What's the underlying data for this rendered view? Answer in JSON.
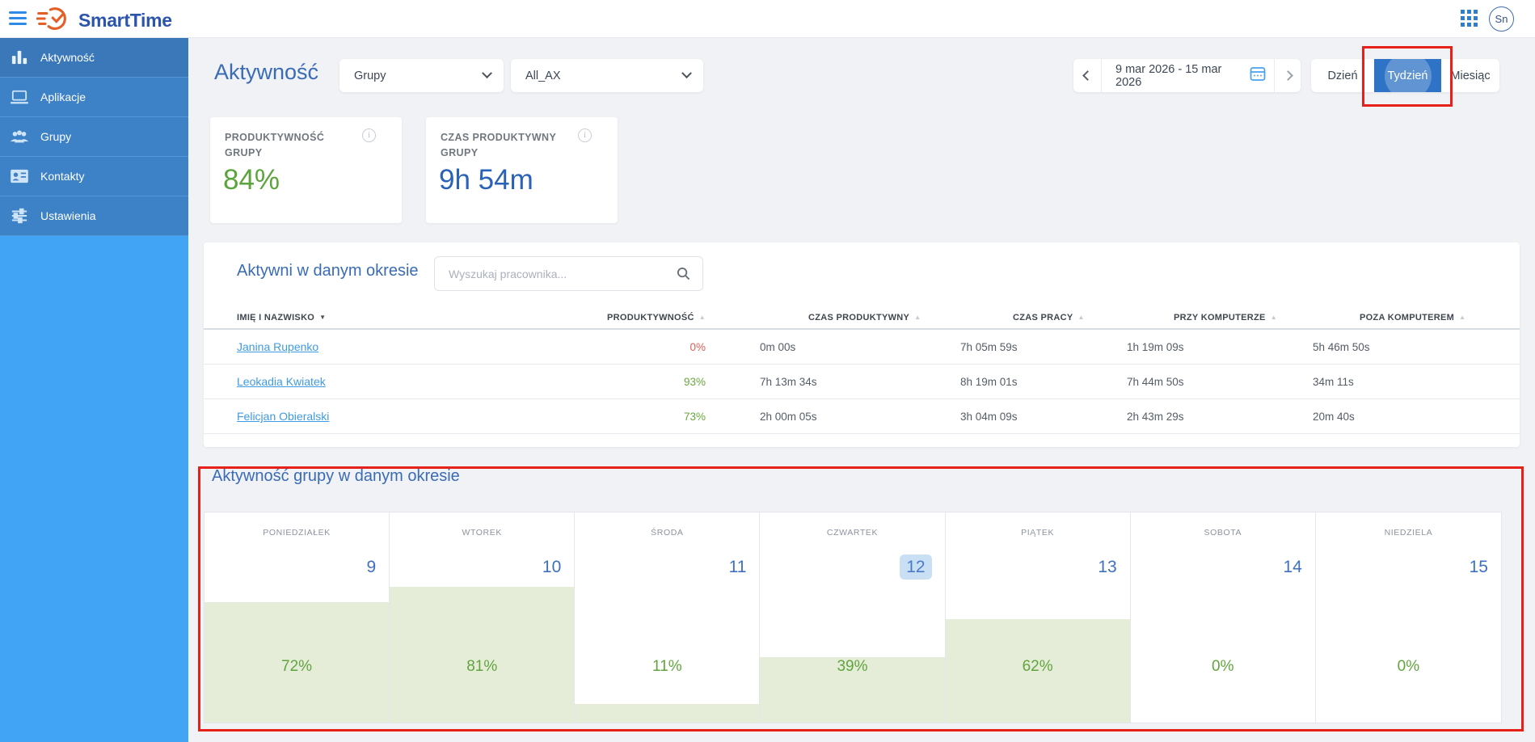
{
  "topbar": {
    "brand": "SmartTime",
    "avatar_initials": "Sn"
  },
  "sidebar": {
    "items": [
      {
        "label": "Aktywność",
        "icon": "bar-chart-icon",
        "active": true
      },
      {
        "label": "Aplikacje",
        "icon": "laptop-icon",
        "active": false
      },
      {
        "label": "Grupy",
        "icon": "people-icon",
        "active": false
      },
      {
        "label": "Kontakty",
        "icon": "contact-card-icon",
        "active": false
      },
      {
        "label": "Ustawienia",
        "icon": "sliders-icon",
        "active": false
      }
    ]
  },
  "header": {
    "title": "Aktywność",
    "group_select": "Grupy",
    "subgroup_select": "All_AX",
    "date_range": "9 mar 2026 - 15 mar 2026",
    "views": [
      {
        "label": "Dzień",
        "active": false
      },
      {
        "label": "Tydzień",
        "active": true
      },
      {
        "label": "Miesiąc",
        "active": false
      }
    ]
  },
  "stats": [
    {
      "label": "PRODUKTYWNOŚĆ GRUPY",
      "value": "84%",
      "color": "#5ba33c"
    },
    {
      "label": "CZAS PRODUKTYWNY GRUPY",
      "value": "9h 54m",
      "color": "#2a62b9"
    }
  ],
  "table": {
    "heading": "Aktywni w danym okresie",
    "search_placeholder": "Wyszukaj pracownika...",
    "columns": [
      {
        "label": "IMIĘ I NAZWISKO",
        "arrow": "▼",
        "sort": "desc-active"
      },
      {
        "label": "PRODUKTYWNOŚĆ",
        "arrow": "▲",
        "sort": "inactive"
      },
      {
        "label": "CZAS PRODUKTYWNY",
        "arrow": "▲",
        "sort": "inactive"
      },
      {
        "label": "CZAS PRACY",
        "arrow": "▲",
        "sort": "inactive"
      },
      {
        "label": "PRZY KOMPUTERZE",
        "arrow": "▲",
        "sort": "inactive"
      },
      {
        "label": "POZA KOMPUTEREM",
        "arrow": "▲",
        "sort": "inactive"
      }
    ],
    "rows": [
      {
        "name": "Janina Rupenko",
        "prod": "0%",
        "prod_status": "low",
        "czas_prod": "0m 00s",
        "czas_pracy": "7h 05m 59s",
        "przy_komp": "1h 19m 09s",
        "poza_komp": "5h 46m 50s"
      },
      {
        "name": "Leokadia Kwiatek",
        "prod": "93%",
        "prod_status": "ok",
        "czas_prod": "7h 13m 34s",
        "czas_pracy": "8h 19m 01s",
        "przy_komp": "7h 44m 50s",
        "poza_komp": "34m 11s"
      },
      {
        "name": "Felicjan Obieralski",
        "prod": "73%",
        "prod_status": "ok",
        "czas_prod": "2h 00m 05s",
        "czas_pracy": "3h 04m 09s",
        "przy_komp": "2h 43m 29s",
        "poza_komp": "20m 40s"
      }
    ]
  },
  "week": {
    "heading": "Aktywność grupy w danym okresie",
    "days": [
      {
        "name": "PONIEDZIAŁEK",
        "date": "9",
        "pct": 72,
        "pct_label": "72%",
        "selected": false
      },
      {
        "name": "WTOREK",
        "date": "10",
        "pct": 81,
        "pct_label": "81%",
        "selected": false
      },
      {
        "name": "ŚRODA",
        "date": "11",
        "pct": 11,
        "pct_label": "11%",
        "selected": false
      },
      {
        "name": "CZWARTEK",
        "date": "12",
        "pct": 39,
        "pct_label": "39%",
        "selected": true
      },
      {
        "name": "PIĄTEK",
        "date": "13",
        "pct": 62,
        "pct_label": "62%",
        "selected": false
      },
      {
        "name": "SOBOTA",
        "date": "14",
        "pct": 0,
        "pct_label": "0%",
        "selected": false
      },
      {
        "name": "NIEDZIELA",
        "date": "15",
        "pct": 0,
        "pct_label": "0%",
        "selected": false
      }
    ]
  },
  "chart_data": {
    "type": "bar",
    "title": "Aktywność grupy w danym okresie",
    "categories": [
      "PONIEDZIAŁEK 9",
      "WTOREK 10",
      "ŚRODA 11",
      "CZWARTEK 12",
      "PIĄTEK 13",
      "SOBOTA 14",
      "NIEDZIELA 15"
    ],
    "values": [
      72,
      81,
      11,
      39,
      62,
      0,
      0
    ],
    "unit": "%",
    "ylim": [
      0,
      100
    ]
  },
  "colors": {
    "sidebar_blue": "#3d81c6",
    "sidebar_active": "#3a78ba",
    "sidebar_bottom": "#42a4f4",
    "accent_blue": "#2e73c5",
    "heading_blue": "#3a6bb5",
    "brand_blue": "#2b55ad",
    "logo_orange": "#e45f26",
    "green_value": "#5ba33c",
    "green_fill": "#e5edd9",
    "link_blue": "#3f9be2",
    "red_pct": "#e25c54",
    "annotation_red": "#e8201a",
    "selected_day_bg": "#c9dff4"
  }
}
